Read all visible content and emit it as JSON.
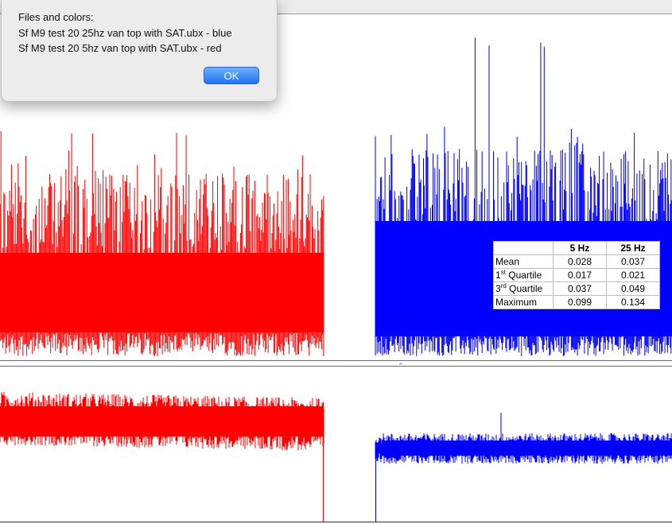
{
  "dialog": {
    "heading": "Files and colors:",
    "lines": [
      "Sf M9 test 20 25hz van top with SAT.ubx - blue",
      "Sf M9 test 20 5hz van top with SAT.ubx - red"
    ],
    "ok_label": "OK"
  },
  "stats_table": {
    "headers": [
      "",
      "5 Hz",
      "25 Hz"
    ],
    "rows": [
      {
        "label": "Mean",
        "sup": "",
        "suffix": "",
        "v5": "0.028",
        "v25": "0.037"
      },
      {
        "label": "1",
        "sup": "st",
        "suffix": " Quartile",
        "v5": "0.017",
        "v25": "0.021"
      },
      {
        "label": "3",
        "sup": "rd",
        "suffix": " Quartile",
        "v5": "0.037",
        "v25": "0.049"
      },
      {
        "label": "Maximum",
        "sup": "",
        "suffix": "",
        "v5": "0.099",
        "v25": "0.134"
      }
    ]
  },
  "colors": {
    "series_5hz": "#ff0000",
    "series_25hz": "#0000ff",
    "dialog_bg": "#ececec",
    "ok_button": "#1f73f0"
  },
  "icons": [
    "divider-grip-icon"
  ]
}
